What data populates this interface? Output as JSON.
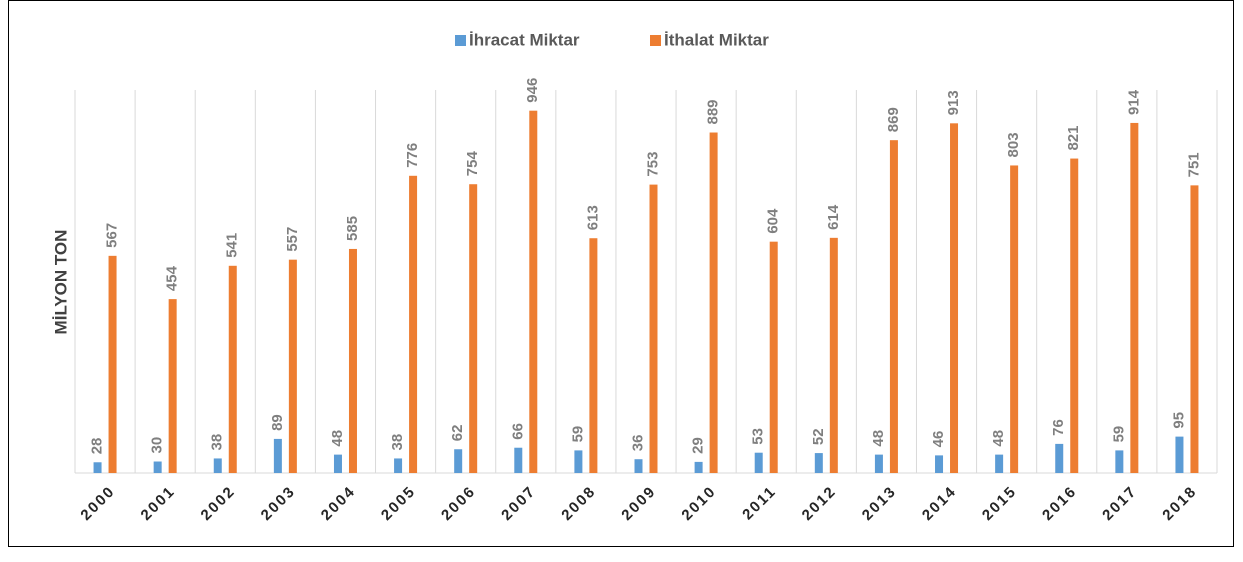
{
  "chart_data": {
    "type": "bar",
    "y_label": "MİLYON TON",
    "categories": [
      "2000",
      "2001",
      "2002",
      "2003",
      "2004",
      "2005",
      "2006",
      "2007",
      "2008",
      "2009",
      "2010",
      "2011",
      "2012",
      "2013",
      "2014",
      "2015",
      "2016",
      "2017",
      "2018"
    ],
    "series": [
      {
        "name": "İhracat Miktar",
        "color": "#5b9bd5",
        "values": [
          28,
          30,
          38,
          89,
          48,
          38,
          62,
          66,
          59,
          36,
          29,
          53,
          52,
          48,
          46,
          48,
          76,
          59,
          95
        ]
      },
      {
        "name": "İthalat Miktar",
        "color": "#ed7d31",
        "values": [
          567,
          454,
          541,
          557,
          585,
          776,
          754,
          946,
          613,
          753,
          889,
          604,
          614,
          869,
          913,
          803,
          821,
          914,
          751
        ]
      }
    ],
    "ylim": [
      0,
      1000
    ],
    "legend": "top"
  }
}
